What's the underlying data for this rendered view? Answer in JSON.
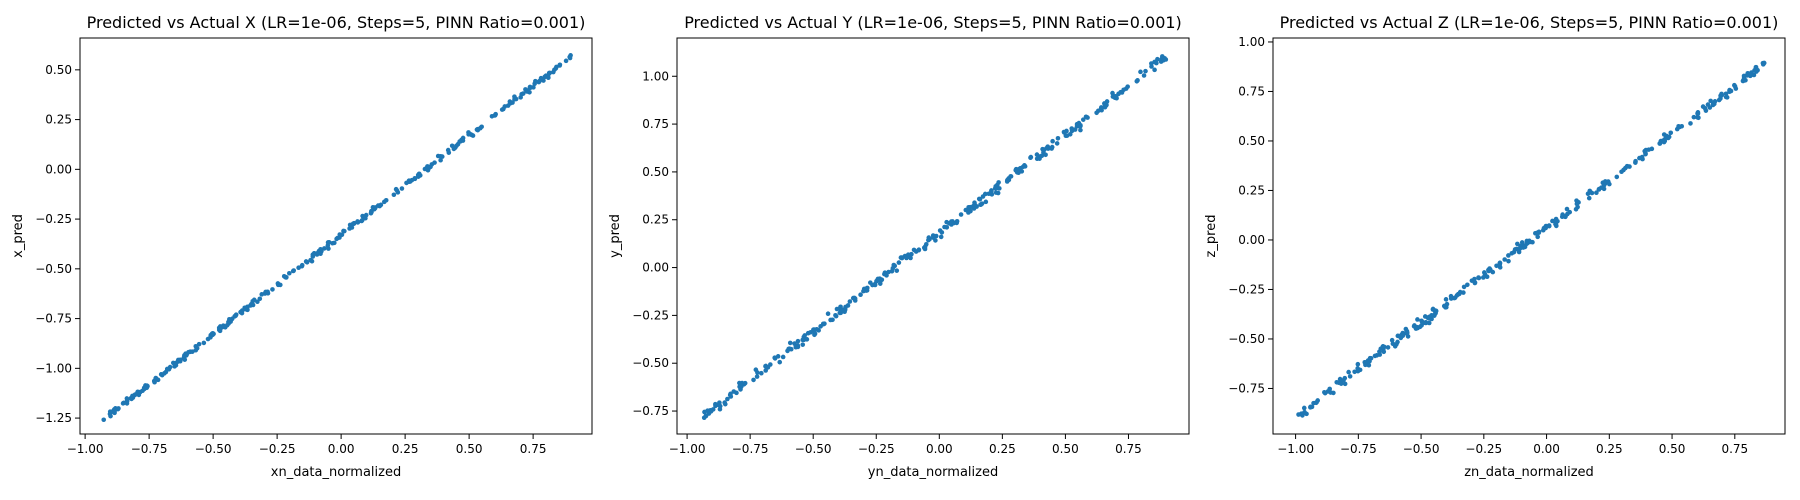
{
  "chart_data": [
    {
      "type": "scatter",
      "title": "Predicted vs Actual X (LR=1e-06, Steps=5, PINN Ratio=0.001)",
      "xlabel": "xn_data_normalized",
      "ylabel": "x_pred",
      "xlim": [
        -1.02,
        0.98
      ],
      "ylim": [
        -1.33,
        0.66
      ],
      "xticks": [
        -1.0,
        -0.75,
        -0.5,
        -0.25,
        0.0,
        0.25,
        0.5,
        0.75
      ],
      "xtick_labels": [
        "−1.00",
        "−0.75",
        "−0.50",
        "−0.25",
        "0.00",
        "0.25",
        "0.50",
        "0.75"
      ],
      "yticks": [
        -1.25,
        -1.0,
        -0.75,
        -0.5,
        -0.25,
        0.0,
        0.25,
        0.5
      ],
      "ytick_labels": [
        "−1.25",
        "−1.00",
        "−0.75",
        "−0.50",
        "−0.25",
        "0.00",
        "0.25",
        "0.50"
      ],
      "grid": false,
      "marker_color": "#1f77b4",
      "x_range": [
        -0.93,
        0.9
      ],
      "fit": {
        "slope": 1.0,
        "intercept": -0.33
      },
      "noise": 0.008,
      "n_points": 300,
      "seed": 17
    },
    {
      "type": "scatter",
      "title": "Predicted vs Actual Y (LR=1e-06, Steps=5, PINN Ratio=0.001)",
      "xlabel": "yn_data_normalized",
      "ylabel": "y_pred",
      "xlim": [
        -1.04,
        0.99
      ],
      "ylim": [
        -0.87,
        1.2
      ],
      "xticks": [
        -1.0,
        -0.75,
        -0.5,
        -0.25,
        0.0,
        0.25,
        0.5,
        0.75
      ],
      "xtick_labels": [
        "−1.00",
        "−0.75",
        "−0.50",
        "−0.25",
        "0.00",
        "0.25",
        "0.50",
        "0.75"
      ],
      "yticks": [
        -0.75,
        -0.5,
        -0.25,
        0.0,
        0.25,
        0.5,
        0.75,
        1.0
      ],
      "ytick_labels": [
        "−0.75",
        "−0.50",
        "−0.25",
        "0.00",
        "0.25",
        "0.50",
        "0.75",
        "1.00"
      ],
      "grid": false,
      "marker_color": "#1f77b4",
      "x_range": [
        -0.95,
        0.9
      ],
      "fit": {
        "slope": 1.025,
        "intercept": 0.18
      },
      "noise": 0.013,
      "n_points": 300,
      "seed": 29
    },
    {
      "type": "scatter",
      "title": "Predicted vs Actual Z (LR=1e-06, Steps=5, PINN Ratio=0.001)",
      "xlabel": "zn_data_normalized",
      "ylabel": "z_pred",
      "xlim": [
        -1.09,
        0.95
      ],
      "ylim": [
        -0.98,
        1.02
      ],
      "xticks": [
        -1.0,
        -0.75,
        -0.5,
        -0.25,
        0.0,
        0.25,
        0.5,
        0.75
      ],
      "xtick_labels": [
        "−1.00",
        "−0.75",
        "−0.50",
        "−0.25",
        "0.00",
        "0.25",
        "0.50",
        "0.75"
      ],
      "yticks": [
        -0.75,
        -0.5,
        -0.25,
        0.0,
        0.25,
        0.5,
        0.75,
        1.0
      ],
      "ytick_labels": [
        "−0.75",
        "−0.50",
        "−0.25",
        "0.00",
        "0.25",
        "0.50",
        "0.75",
        "1.00"
      ],
      "grid": false,
      "marker_color": "#1f77b4",
      "x_range": [
        -0.99,
        0.88
      ],
      "fit": {
        "slope": 0.955,
        "intercept": 0.06
      },
      "noise": 0.012,
      "n_points": 300,
      "seed": 41
    }
  ]
}
